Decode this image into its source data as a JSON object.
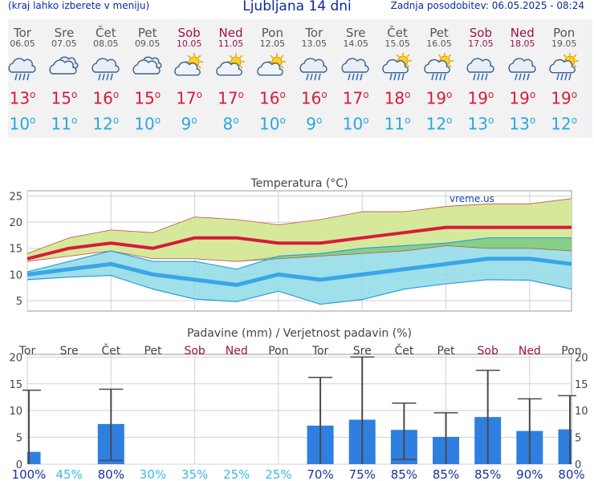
{
  "header": {
    "left_note": "(kraj lahko izberete v meniju)",
    "title": "Ljubljana 14 dni",
    "updated": "Zadnja posodobitev: 06.05.2025 - 08:24"
  },
  "days": [
    {
      "name": "Tor",
      "date": "06.05",
      "weekend": false,
      "icon": "rain-cloud-icon",
      "tmax": "13",
      "tmin": "10"
    },
    {
      "name": "Sre",
      "date": "07.05",
      "weekend": false,
      "icon": "cloudy-icon",
      "tmax": "15",
      "tmin": "11"
    },
    {
      "name": "Čet",
      "date": "08.05",
      "weekend": false,
      "icon": "rain-cloud-icon",
      "tmax": "16",
      "tmin": "12"
    },
    {
      "name": "Pet",
      "date": "09.05",
      "weekend": false,
      "icon": "cloudy-icon",
      "tmax": "15",
      "tmin": "10"
    },
    {
      "name": "Sob",
      "date": "10.05",
      "weekend": true,
      "icon": "sun-cloud-icon",
      "tmax": "17",
      "tmin": "9"
    },
    {
      "name": "Ned",
      "date": "11.05",
      "weekend": true,
      "icon": "sun-cloud-icon",
      "tmax": "17",
      "tmin": "8"
    },
    {
      "name": "Pon",
      "date": "12.05",
      "weekend": false,
      "icon": "sun-cloud-icon",
      "tmax": "16",
      "tmin": "10"
    },
    {
      "name": "Tor",
      "date": "13.05",
      "weekend": false,
      "icon": "rain-cloud-icon",
      "tmax": "16",
      "tmin": "9"
    },
    {
      "name": "Sre",
      "date": "14.05",
      "weekend": false,
      "icon": "rain-cloud-icon",
      "tmax": "17",
      "tmin": "10"
    },
    {
      "name": "Čet",
      "date": "15.05",
      "weekend": false,
      "icon": "sun-rain-cloud-icon",
      "tmax": "18",
      "tmin": "11"
    },
    {
      "name": "Pet",
      "date": "16.05",
      "weekend": false,
      "icon": "sun-rain-cloud-icon",
      "tmax": "19",
      "tmin": "12"
    },
    {
      "name": "Sob",
      "date": "17.05",
      "weekend": true,
      "icon": "rain-cloud-icon",
      "tmax": "19",
      "tmin": "13"
    },
    {
      "name": "Ned",
      "date": "18.05",
      "weekend": true,
      "icon": "rain-cloud-icon",
      "tmax": "19",
      "tmin": "13"
    },
    {
      "name": "Pon",
      "date": "19.05",
      "weekend": false,
      "icon": "sun-rain-cloud-icon",
      "tmax": "19",
      "tmin": "12"
    }
  ],
  "colors": {
    "tmax": "#d71a3c",
    "tmin": "#27a8e0",
    "weekend": "#a0104a",
    "band_green": "#d6e99a",
    "band_cyan": "#8fdbe6",
    "overlap": "#86cf85",
    "precip_bar": "#2f7fe0",
    "error_bar": "#4a4a4a",
    "forecast_bg": "#f2f2f2"
  },
  "chart_data": [
    {
      "type": "line",
      "title": "Temperatura (°C)",
      "watermark": "vreme.us",
      "x": [
        "Tor",
        "Sre",
        "Čet",
        "Pet",
        "Sob",
        "Ned",
        "Pon",
        "Tor",
        "Sre",
        "Čet",
        "Pet",
        "Sob",
        "Ned",
        "Pon"
      ],
      "ylim": [
        3,
        26
      ],
      "yticks": [
        5,
        10,
        15,
        20,
        25
      ],
      "grid": true,
      "series": [
        {
          "role": "tmax",
          "values": [
            13,
            15,
            16,
            15,
            17,
            17,
            16,
            16,
            17,
            18,
            19,
            19,
            19,
            19
          ]
        },
        {
          "role": "tmax_upper",
          "values": [
            14,
            17,
            18.5,
            18,
            21,
            20.5,
            19.5,
            20.5,
            22,
            22,
            23,
            23.5,
            23.5,
            24.5
          ]
        },
        {
          "role": "tmax_lower",
          "values": [
            12.5,
            13.5,
            14.5,
            13,
            13,
            12.5,
            13,
            13.5,
            14,
            14.5,
            15.5,
            15,
            15,
            14.5
          ]
        },
        {
          "role": "tmin",
          "values": [
            10,
            11,
            12,
            10,
            9,
            8,
            10,
            9,
            10,
            11,
            12,
            13,
            13,
            12
          ]
        },
        {
          "role": "tmin_upper",
          "values": [
            10.5,
            12.5,
            14.5,
            12.5,
            12.5,
            11,
            13.5,
            14,
            15,
            15.5,
            16,
            17,
            17,
            17
          ]
        },
        {
          "role": "tmin_lower",
          "values": [
            9,
            9.5,
            9.8,
            7.2,
            5.3,
            4.8,
            6.8,
            4.3,
            5.2,
            7.2,
            8.2,
            9,
            8.9,
            7.2
          ]
        }
      ]
    },
    {
      "type": "bar",
      "title": "Padavine (mm) / Verjetnost padavin (%)",
      "categories": [
        "Tor",
        "Sre",
        "Čet",
        "Pet",
        "Sob",
        "Ned",
        "Pon",
        "Tor",
        "Sre",
        "Čet",
        "Pet",
        "Sob",
        "Ned",
        "Pon"
      ],
      "values": [
        2.3,
        0,
        7.5,
        0,
        0,
        0,
        0,
        7.2,
        8.3,
        6.4,
        5.1,
        8.8,
        6.2,
        6.5
      ],
      "err_low": [
        0,
        0,
        0.7,
        0,
        0,
        0,
        0,
        0,
        0,
        0.9,
        0,
        0,
        0,
        0
      ],
      "err_high": [
        13.8,
        0,
        14,
        0,
        0,
        0,
        0,
        16.2,
        20,
        11.4,
        9.6,
        17.5,
        12.2,
        12.8
      ],
      "probability": [
        "100%",
        "45%",
        "80%",
        "30%",
        "35%",
        "25%",
        "25%",
        "70%",
        "75%",
        "85%",
        "85%",
        "85%",
        "90%",
        "80%"
      ],
      "prob_highlight": [
        true,
        false,
        true,
        false,
        false,
        false,
        false,
        true,
        true,
        true,
        true,
        true,
        true,
        true
      ],
      "ylim": [
        0,
        20.5
      ],
      "yticks": [
        0,
        5,
        10,
        15,
        20
      ],
      "grid": true
    }
  ]
}
